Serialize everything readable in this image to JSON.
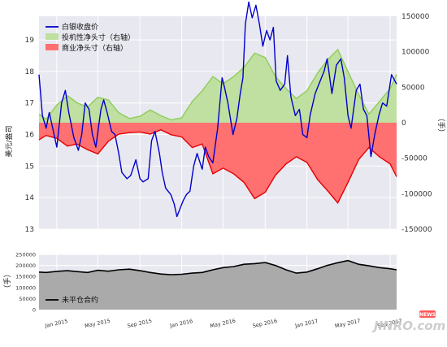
{
  "chart_data": [
    {
      "type": "line",
      "title": "",
      "left_ylabel": "美元/盎司",
      "right_ylabel": "（手）",
      "ylim_left": [
        13,
        19.75
      ],
      "yticks_left": [
        "13",
        "14",
        "15",
        "16",
        "17",
        "18",
        "19"
      ],
      "ylim_right": [
        -150000,
        150000
      ],
      "yticks_right": [
        "-150000",
        "-100000",
        "-50000",
        "0",
        "50000",
        "100000",
        "150000"
      ],
      "x_range": [
        "2014-11-10",
        "2017-09-20"
      ],
      "x_ticks": [
        "Jan 2015",
        "May 2015",
        "Sep 2015",
        "Jan 2016",
        "May 2016",
        "Sep 2016",
        "Jan 2017",
        "May 2017",
        "Sep 2017"
      ],
      "legend_position": "top-left",
      "grid": true,
      "series": [
        {
          "name": "白银收盘价",
          "kind": "line",
          "axis": "left",
          "color": "#0000cc",
          "points": [
            [
              "2014-11-10",
              17.9
            ],
            [
              "2014-11-20",
              16.6
            ],
            [
              "2014-12-01",
              16.2
            ],
            [
              "2014-12-10",
              16.7
            ],
            [
              "2014-12-18",
              16.3
            ],
            [
              "2015-01-01",
              15.6
            ],
            [
              "2015-01-15",
              17.0
            ],
            [
              "2015-01-26",
              17.4
            ],
            [
              "2015-02-05",
              16.7
            ],
            [
              "2015-02-20",
              15.9
            ],
            [
              "2015-03-05",
              15.5
            ],
            [
              "2015-03-15",
              16.0
            ],
            [
              "2015-03-25",
              17.0
            ],
            [
              "2015-04-05",
              16.8
            ],
            [
              "2015-04-15",
              16.0
            ],
            [
              "2015-04-25",
              15.6
            ],
            [
              "2015-05-10",
              16.8
            ],
            [
              "2015-05-18",
              17.1
            ],
            [
              "2015-05-28",
              16.7
            ],
            [
              "2015-06-10",
              16.1
            ],
            [
              "2015-06-20",
              16.0
            ],
            [
              "2015-07-01",
              15.4
            ],
            [
              "2015-07-10",
              14.8
            ],
            [
              "2015-07-25",
              14.6
            ],
            [
              "2015-08-05",
              14.7
            ],
            [
              "2015-08-20",
              15.2
            ],
            [
              "2015-09-01",
              14.6
            ],
            [
              "2015-09-10",
              14.5
            ],
            [
              "2015-09-25",
              14.6
            ],
            [
              "2015-10-05",
              15.8
            ],
            [
              "2015-10-15",
              16.1
            ],
            [
              "2015-10-28",
              15.4
            ],
            [
              "2015-11-05",
              14.8
            ],
            [
              "2015-11-15",
              14.3
            ],
            [
              "2015-11-30",
              14.1
            ],
            [
              "2015-12-10",
              13.8
            ],
            [
              "2015-12-18",
              13.4
            ],
            [
              "2016-01-05",
              13.9
            ],
            [
              "2016-01-15",
              14.1
            ],
            [
              "2016-01-25",
              14.2
            ],
            [
              "2016-02-05",
              15.0
            ],
            [
              "2016-02-15",
              15.4
            ],
            [
              "2016-03-01",
              14.9
            ],
            [
              "2016-03-10",
              15.6
            ],
            [
              "2016-03-20",
              15.3
            ],
            [
              "2016-04-01",
              15.1
            ],
            [
              "2016-04-15",
              16.2
            ],
            [
              "2016-04-28",
              17.8
            ],
            [
              "2016-05-05",
              17.5
            ],
            [
              "2016-05-15",
              17.0
            ],
            [
              "2016-05-30",
              16.0
            ],
            [
              "2016-06-10",
              16.5
            ],
            [
              "2016-06-20",
              17.3
            ],
            [
              "2016-06-28",
              17.8
            ],
            [
              "2016-07-05",
              19.5
            ],
            [
              "2016-07-15",
              20.2
            ],
            [
              "2016-07-25",
              19.7
            ],
            [
              "2016-08-05",
              20.1
            ],
            [
              "2016-08-15",
              19.5
            ],
            [
              "2016-08-25",
              18.8
            ],
            [
              "2016-09-05",
              19.3
            ],
            [
              "2016-09-15",
              19.0
            ],
            [
              "2016-09-25",
              19.4
            ],
            [
              "2016-10-03",
              17.7
            ],
            [
              "2016-10-15",
              17.4
            ],
            [
              "2016-10-28",
              17.6
            ],
            [
              "2016-11-05",
              18.5
            ],
            [
              "2016-11-15",
              17.2
            ],
            [
              "2016-11-28",
              16.6
            ],
            [
              "2016-12-10",
              16.8
            ],
            [
              "2016-12-20",
              16.0
            ],
            [
              "2017-01-01",
              15.9
            ],
            [
              "2017-01-10",
              16.6
            ],
            [
              "2017-01-25",
              17.3
            ],
            [
              "2017-02-05",
              17.6
            ],
            [
              "2017-02-20",
              18.0
            ],
            [
              "2017-03-01",
              18.4
            ],
            [
              "2017-03-15",
              17.3
            ],
            [
              "2017-03-28",
              18.2
            ],
            [
              "2017-04-10",
              18.4
            ],
            [
              "2017-04-20",
              17.8
            ],
            [
              "2017-05-01",
              16.6
            ],
            [
              "2017-05-10",
              16.2
            ],
            [
              "2017-05-25",
              17.4
            ],
            [
              "2017-06-05",
              17.6
            ],
            [
              "2017-06-15",
              16.8
            ],
            [
              "2017-06-25",
              16.6
            ],
            [
              "2017-07-07",
              15.3
            ],
            [
              "2017-07-18",
              16.0
            ],
            [
              "2017-07-30",
              16.6
            ],
            [
              "2017-08-10",
              17.0
            ],
            [
              "2017-08-22",
              16.9
            ],
            [
              "2017-09-05",
              17.9
            ],
            [
              "2017-09-20",
              17.6
            ]
          ]
        },
        {
          "name": "投机性净头寸（右轴）",
          "kind": "area",
          "axis": "right",
          "color": "#7fbf3f",
          "points": [
            [
              "2014-11-10",
              12000
            ],
            [
              "2014-12-01",
              5000
            ],
            [
              "2015-01-01",
              25000
            ],
            [
              "2015-02-01",
              38000
            ],
            [
              "2015-03-01",
              28000
            ],
            [
              "2015-04-01",
              22000
            ],
            [
              "2015-05-01",
              36000
            ],
            [
              "2015-06-01",
              32000
            ],
            [
              "2015-07-01",
              14000
            ],
            [
              "2015-08-01",
              6000
            ],
            [
              "2015-09-01",
              9000
            ],
            [
              "2015-10-01",
              18000
            ],
            [
              "2015-11-01",
              10000
            ],
            [
              "2015-12-01",
              4000
            ],
            [
              "2016-01-01",
              7000
            ],
            [
              "2016-02-01",
              30000
            ],
            [
              "2016-03-01",
              45000
            ],
            [
              "2016-04-01",
              65000
            ],
            [
              "2016-05-01",
              55000
            ],
            [
              "2016-06-01",
              65000
            ],
            [
              "2016-07-01",
              78000
            ],
            [
              "2016-08-01",
              98000
            ],
            [
              "2016-09-01",
              92000
            ],
            [
              "2016-10-01",
              65000
            ],
            [
              "2016-11-01",
              48000
            ],
            [
              "2016-12-01",
              34000
            ],
            [
              "2017-01-01",
              45000
            ],
            [
              "2017-02-01",
              70000
            ],
            [
              "2017-03-01",
              88000
            ],
            [
              "2017-04-01",
              103000
            ],
            [
              "2017-05-01",
              72000
            ],
            [
              "2017-06-01",
              40000
            ],
            [
              "2017-07-01",
              12000
            ],
            [
              "2017-08-01",
              30000
            ],
            [
              "2017-09-01",
              48000
            ],
            [
              "2017-09-20",
              68000
            ]
          ]
        },
        {
          "name": "商业净头寸（右轴）",
          "kind": "area",
          "axis": "right",
          "color": "#ff6666",
          "points": [
            [
              "2014-11-10",
              -24000
            ],
            [
              "2014-12-01",
              -18000
            ],
            [
              "2015-01-01",
              -22000
            ],
            [
              "2015-02-01",
              -33000
            ],
            [
              "2015-03-01",
              -30000
            ],
            [
              "2015-04-01",
              -38000
            ],
            [
              "2015-05-01",
              -44000
            ],
            [
              "2015-06-01",
              -26000
            ],
            [
              "2015-07-01",
              -16000
            ],
            [
              "2015-08-01",
              -14000
            ],
            [
              "2015-09-01",
              -13000
            ],
            [
              "2015-10-01",
              -16000
            ],
            [
              "2015-11-01",
              -10000
            ],
            [
              "2015-12-01",
              -17000
            ],
            [
              "2016-01-01",
              -20000
            ],
            [
              "2016-02-01",
              -35000
            ],
            [
              "2016-03-01",
              -30000
            ],
            [
              "2016-04-01",
              -72000
            ],
            [
              "2016-05-01",
              -64000
            ],
            [
              "2016-06-01",
              -72000
            ],
            [
              "2016-07-01",
              -84000
            ],
            [
              "2016-08-01",
              -107000
            ],
            [
              "2016-09-01",
              -98000
            ],
            [
              "2016-10-01",
              -74000
            ],
            [
              "2016-11-01",
              -58000
            ],
            [
              "2016-12-01",
              -48000
            ],
            [
              "2017-01-01",
              -56000
            ],
            [
              "2017-02-01",
              -80000
            ],
            [
              "2017-03-01",
              -95000
            ],
            [
              "2017-04-01",
              -113000
            ],
            [
              "2017-05-01",
              -84000
            ],
            [
              "2017-06-01",
              -52000
            ],
            [
              "2017-07-01",
              -35000
            ],
            [
              "2017-08-01",
              -48000
            ],
            [
              "2017-09-01",
              -58000
            ],
            [
              "2017-09-20",
              -76000
            ]
          ]
        }
      ]
    },
    {
      "type": "area",
      "title": "",
      "ylabel": "（手）",
      "ylim": [
        0,
        250000
      ],
      "yticks": [
        "0",
        "50000",
        "100000",
        "150000",
        "200000",
        "250000"
      ],
      "legend_position": "bottom-left",
      "grid": true,
      "series": [
        {
          "name": "未平仓合约",
          "color": "#000000",
          "fill": "#aaaaaa",
          "points": [
            [
              "2014-11-10",
              170000
            ],
            [
              "2014-12-01",
              168000
            ],
            [
              "2015-01-01",
              173000
            ],
            [
              "2015-02-01",
              176000
            ],
            [
              "2015-03-01",
              172000
            ],
            [
              "2015-04-01",
              168000
            ],
            [
              "2015-05-01",
              178000
            ],
            [
              "2015-06-01",
              174000
            ],
            [
              "2015-07-01",
              180000
            ],
            [
              "2015-08-01",
              183000
            ],
            [
              "2015-09-01",
              176000
            ],
            [
              "2015-10-01",
              168000
            ],
            [
              "2015-11-01",
              161000
            ],
            [
              "2015-12-01",
              158000
            ],
            [
              "2016-01-01",
              160000
            ],
            [
              "2016-02-01",
              165000
            ],
            [
              "2016-03-01",
              168000
            ],
            [
              "2016-04-01",
              180000
            ],
            [
              "2016-05-01",
              190000
            ],
            [
              "2016-06-01",
              195000
            ],
            [
              "2016-07-01",
              205000
            ],
            [
              "2016-08-01",
              208000
            ],
            [
              "2016-09-01",
              213000
            ],
            [
              "2016-10-01",
              200000
            ],
            [
              "2016-11-01",
              180000
            ],
            [
              "2016-12-01",
              165000
            ],
            [
              "2017-01-01",
              170000
            ],
            [
              "2017-02-01",
              185000
            ],
            [
              "2017-03-01",
              200000
            ],
            [
              "2017-04-01",
              212000
            ],
            [
              "2017-05-01",
              222000
            ],
            [
              "2017-06-01",
              205000
            ],
            [
              "2017-07-01",
              198000
            ],
            [
              "2017-08-01",
              190000
            ],
            [
              "2017-09-01",
              185000
            ],
            [
              "2017-09-20",
              180000
            ]
          ]
        }
      ]
    }
  ],
  "watermark": {
    "text": "JINRO.com",
    "badge": "NEWS"
  }
}
